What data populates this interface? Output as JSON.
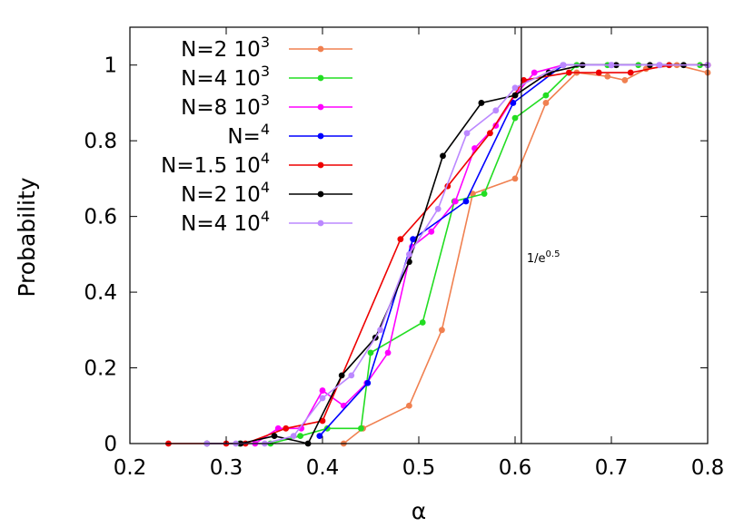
{
  "chart_data": {
    "type": "line",
    "xlabel": "α",
    "ylabel": "Probability",
    "xlim": [
      0.2,
      0.8
    ],
    "ylim": [
      0,
      1.1
    ],
    "xticks": [
      "0.2",
      "0.3",
      "0.4",
      "0.5",
      "0.6",
      "0.7",
      "0.8"
    ],
    "yticks": [
      "0",
      "0.2",
      "0.4",
      "0.6",
      "0.8",
      "1"
    ],
    "grid": false,
    "legend_position": "top-left",
    "vline": {
      "x": 0.6065,
      "label_base": "1/e",
      "label_exp": "0.5"
    },
    "series": [
      {
        "label_base": "N=2 10",
        "label_exp": "3",
        "color": "#f08050",
        "x": [
          0.422,
          0.442,
          0.49,
          0.524,
          0.556,
          0.6,
          0.632,
          0.664,
          0.696,
          0.714,
          0.736,
          0.768,
          0.8
        ],
        "y": [
          0.0,
          0.04,
          0.1,
          0.3,
          0.66,
          0.7,
          0.9,
          0.98,
          0.97,
          0.96,
          0.99,
          1.0,
          0.98
        ]
      },
      {
        "label_base": "N=4 10",
        "label_exp": "3",
        "color": "#22dd22",
        "x": [
          0.314,
          0.346,
          0.377,
          0.405,
          0.44,
          0.45,
          0.504,
          0.537,
          0.568,
          0.6,
          0.632,
          0.664,
          0.696,
          0.728,
          0.76,
          0.792
        ],
        "y": [
          0.0,
          0.0,
          0.02,
          0.04,
          0.04,
          0.24,
          0.32,
          0.64,
          0.66,
          0.86,
          0.92,
          1.0,
          1.0,
          1.0,
          1.0,
          1.0
        ]
      },
      {
        "label_base": "N=8 10",
        "label_exp": "3",
        "color": "#ff00ff",
        "x": [
          0.33,
          0.354,
          0.378,
          0.4,
          0.422,
          0.446,
          0.468,
          0.493,
          0.513,
          0.538,
          0.558,
          0.58,
          0.6,
          0.62,
          0.65,
          0.7,
          0.75,
          0.8
        ],
        "y": [
          0.0,
          0.04,
          0.04,
          0.14,
          0.1,
          0.16,
          0.24,
          0.52,
          0.56,
          0.64,
          0.78,
          0.84,
          0.92,
          0.98,
          1.0,
          1.0,
          1.0,
          1.0
        ]
      },
      {
        "label_base": "N=",
        "label_exp": "4",
        "color": "#0000ff",
        "x": [
          0.397,
          0.447,
          0.494,
          0.549,
          0.598,
          0.65,
          0.7,
          0.75,
          0.8
        ],
        "y": [
          0.02,
          0.16,
          0.54,
          0.64,
          0.9,
          1.0,
          1.0,
          1.0,
          1.0
        ]
      },
      {
        "label_base": "N=1.5 10",
        "label_exp": "4",
        "color": "#ee0000",
        "x": [
          0.24,
          0.3,
          0.32,
          0.362,
          0.4,
          0.481,
          0.53,
          0.574,
          0.609,
          0.656,
          0.687,
          0.72,
          0.76,
          0.8
        ],
        "y": [
          0.0,
          0.0,
          0.0,
          0.04,
          0.06,
          0.54,
          0.68,
          0.82,
          0.96,
          0.98,
          0.98,
          0.98,
          1.0,
          1.0
        ]
      },
      {
        "label_base": "N=2 10",
        "label_exp": "4",
        "color": "#000000",
        "x": [
          0.28,
          0.315,
          0.35,
          0.385,
          0.42,
          0.455,
          0.49,
          0.525,
          0.565,
          0.6,
          0.635,
          0.67,
          0.705,
          0.74,
          0.775
        ],
        "y": [
          0.0,
          0.0,
          0.02,
          0.0,
          0.18,
          0.28,
          0.48,
          0.76,
          0.9,
          0.92,
          0.98,
          1.0,
          1.0,
          1.0,
          1.0
        ]
      },
      {
        "label_base": "N=4 10",
        "label_exp": "4",
        "color": "#bb88ff",
        "x": [
          0.28,
          0.31,
          0.34,
          0.37,
          0.4,
          0.43,
          0.46,
          0.49,
          0.52,
          0.55,
          0.58,
          0.6,
          0.65,
          0.7,
          0.75,
          0.8
        ],
        "y": [
          0.0,
          0.0,
          0.0,
          0.02,
          0.12,
          0.18,
          0.3,
          0.5,
          0.62,
          0.82,
          0.88,
          0.94,
          1.0,
          1.0,
          1.0,
          1.0
        ]
      }
    ]
  }
}
